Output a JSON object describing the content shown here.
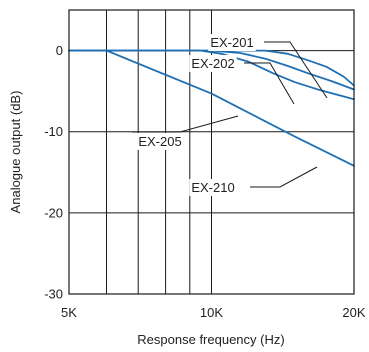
{
  "chart_data": {
    "type": "line",
    "xlabel": "Response frequency (Hz)",
    "ylabel": "Analogue output (dB)",
    "x_scale": "log",
    "xlim": [
      5000,
      20000
    ],
    "ylim": [
      -30,
      5
    ],
    "x_ticks": [
      {
        "value": 5000,
        "label": "5K"
      },
      {
        "value": 10000,
        "label": "10K"
      },
      {
        "value": 20000,
        "label": "20K"
      }
    ],
    "x_grid": [
      5000,
      6000,
      7000,
      8000,
      9000,
      10000,
      20000
    ],
    "y_ticks": [
      {
        "value": 0,
        "label": "0"
      },
      {
        "value": -10,
        "label": "-10"
      },
      {
        "value": -20,
        "label": "-20"
      },
      {
        "value": -30,
        "label": "-30"
      }
    ],
    "grid": true,
    "line_color": "#1f6fb2",
    "series": [
      {
        "name": "EX-201",
        "points": [
          [
            5000,
            0
          ],
          [
            10000,
            0
          ],
          [
            13000,
            0
          ],
          [
            14500,
            -0.4
          ],
          [
            16000,
            -1.2
          ],
          [
            17500,
            -2.0
          ],
          [
            19000,
            -3.2
          ],
          [
            20000,
            -4.3
          ]
        ]
      },
      {
        "name": "EX-202",
        "points": [
          [
            5000,
            0
          ],
          [
            10000,
            0
          ],
          [
            11500,
            -0.3
          ],
          [
            13000,
            -1.0
          ],
          [
            14500,
            -1.9
          ],
          [
            16000,
            -2.8
          ],
          [
            18000,
            -3.8
          ],
          [
            20000,
            -4.8
          ]
        ]
      },
      {
        "name": "EX-205",
        "points": [
          [
            5000,
            0
          ],
          [
            9500,
            0
          ],
          [
            10500,
            -0.4
          ],
          [
            12000,
            -1.4
          ],
          [
            13500,
            -2.8
          ],
          [
            15000,
            -3.9
          ],
          [
            17000,
            -4.9
          ],
          [
            20000,
            -6.0
          ]
        ]
      },
      {
        "name": "EX-210",
        "points": [
          [
            5000,
            0
          ],
          [
            6000,
            0
          ],
          [
            10000,
            -5.3
          ],
          [
            15000,
            -10.6
          ],
          [
            20000,
            -14.2
          ]
        ]
      }
    ]
  }
}
